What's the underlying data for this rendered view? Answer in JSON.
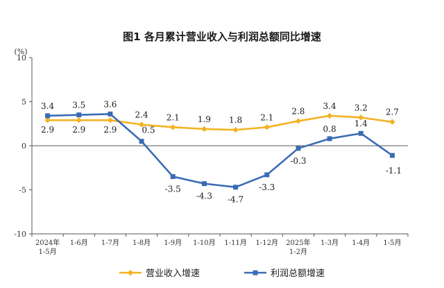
{
  "chart_data": {
    "type": "line",
    "title": "图1  各月累计营业收入与利润总额同比增速",
    "ylabel": "(%)",
    "ylim": [
      -10,
      10
    ],
    "yticks": [
      "10",
      "5",
      "0",
      "-5",
      "-10"
    ],
    "categories": [
      "2024年1-5月",
      "1-6月",
      "1-7月",
      "1-8月",
      "1-9月",
      "1-10月",
      "1-11月",
      "1-12月",
      "2025年1-2月",
      "1-3月",
      "1-4月",
      "1-5月"
    ],
    "category_lines": [
      [
        "2024年",
        "1-5月"
      ],
      [
        "1-6月"
      ],
      [
        "1-7月"
      ],
      [
        "1-8月"
      ],
      [
        "1-9月"
      ],
      [
        "1-10月"
      ],
      [
        "1-11月"
      ],
      [
        "1-12月"
      ],
      [
        "2025年",
        "1-2月"
      ],
      [
        "1-3月"
      ],
      [
        "1-4月"
      ],
      [
        "1-5月"
      ]
    ],
    "series": [
      {
        "name": "营业收入增速",
        "color": "#f4b223",
        "marker": "diamond",
        "values": [
          2.9,
          2.9,
          2.9,
          2.4,
          2.1,
          1.9,
          1.8,
          2.1,
          2.8,
          3.4,
          3.2,
          2.7
        ],
        "labels": [
          "2.9",
          "2.9",
          "2.9",
          "2.4",
          "2.1",
          "1.9",
          "1.8",
          "2.1",
          "2.8",
          "3.4",
          "3.2",
          "2.7"
        ]
      },
      {
        "name": "利润总额增速",
        "color": "#3a6cb4",
        "marker": "square",
        "values": [
          3.4,
          3.5,
          3.6,
          0.5,
          -3.5,
          -4.3,
          -4.7,
          -3.3,
          -0.3,
          0.8,
          1.4,
          -1.1
        ],
        "labels": [
          "3.4",
          "3.5",
          "3.6",
          "0.5",
          "-3.5",
          "-4.3",
          "-4.7",
          "-3.3",
          "-0.3",
          "0.8",
          "1.4",
          "-1.1"
        ]
      }
    ]
  }
}
